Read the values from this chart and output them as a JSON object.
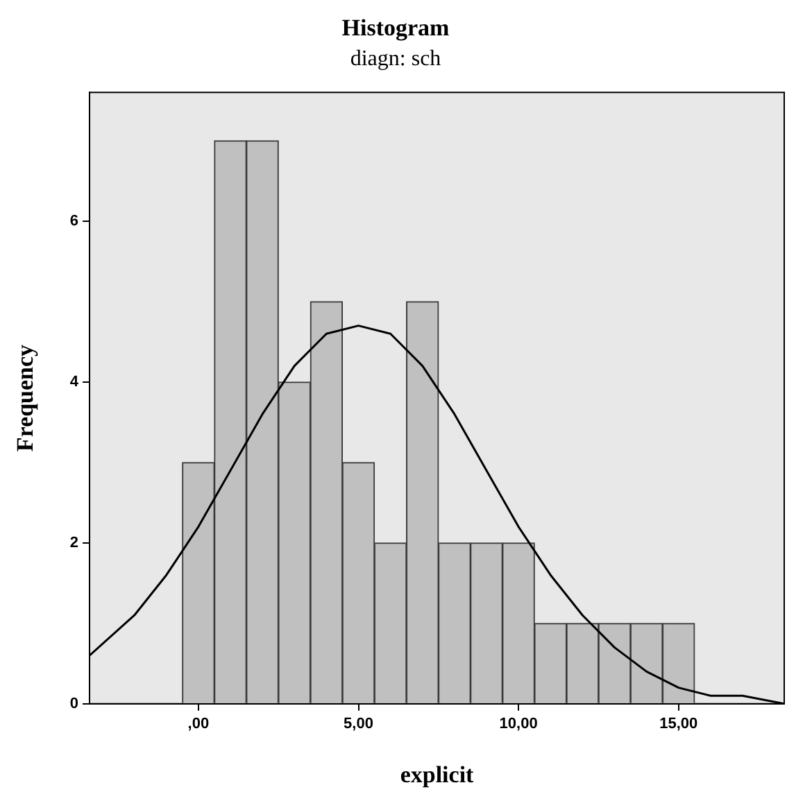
{
  "chart_data": {
    "type": "histogram",
    "title": "Histogram",
    "subtitle": "diagn: sch",
    "xlabel": "explicit",
    "ylabel": "Frequency",
    "bins": [
      -0.5,
      0.5,
      1.5,
      2.5,
      3.5,
      4.5,
      5.5,
      6.5,
      7.5,
      8.5,
      9.5,
      10.5,
      11.5,
      12.5,
      13.5,
      14.5,
      15.5
    ],
    "values": [
      3,
      7,
      7,
      4,
      5,
      3,
      2,
      5,
      2,
      2,
      2,
      1,
      1,
      1,
      1,
      1
    ],
    "color": "#c0c0c0",
    "series": [
      {
        "type": "line",
        "color": "#000000",
        "x": [
          -3.4,
          -2,
          -1,
          0,
          1,
          2,
          3,
          4,
          5,
          6,
          7,
          8,
          9,
          10,
          11,
          12,
          13,
          14,
          15,
          16,
          17,
          18.3
        ],
        "values": [
          0.6,
          1.1,
          1.6,
          2.2,
          2.9,
          3.6,
          4.2,
          4.6,
          4.7,
          4.6,
          4.2,
          3.6,
          2.9,
          2.2,
          1.6,
          1.1,
          0.7,
          0.4,
          0.2,
          0.1,
          0.1,
          0.0
        ]
      }
    ],
    "xlim": [
      -3.4,
      18.3
    ],
    "xticks": [
      {
        "value": 0,
        "label": ",00"
      },
      {
        "value": 5,
        "label": "5,00"
      },
      {
        "value": 10,
        "label": "10,00"
      },
      {
        "value": 15,
        "label": "15,00"
      }
    ],
    "ylim": [
      0,
      7.6
    ],
    "yticks": [
      0,
      2,
      4,
      6
    ],
    "grid": false,
    "legend": false
  }
}
